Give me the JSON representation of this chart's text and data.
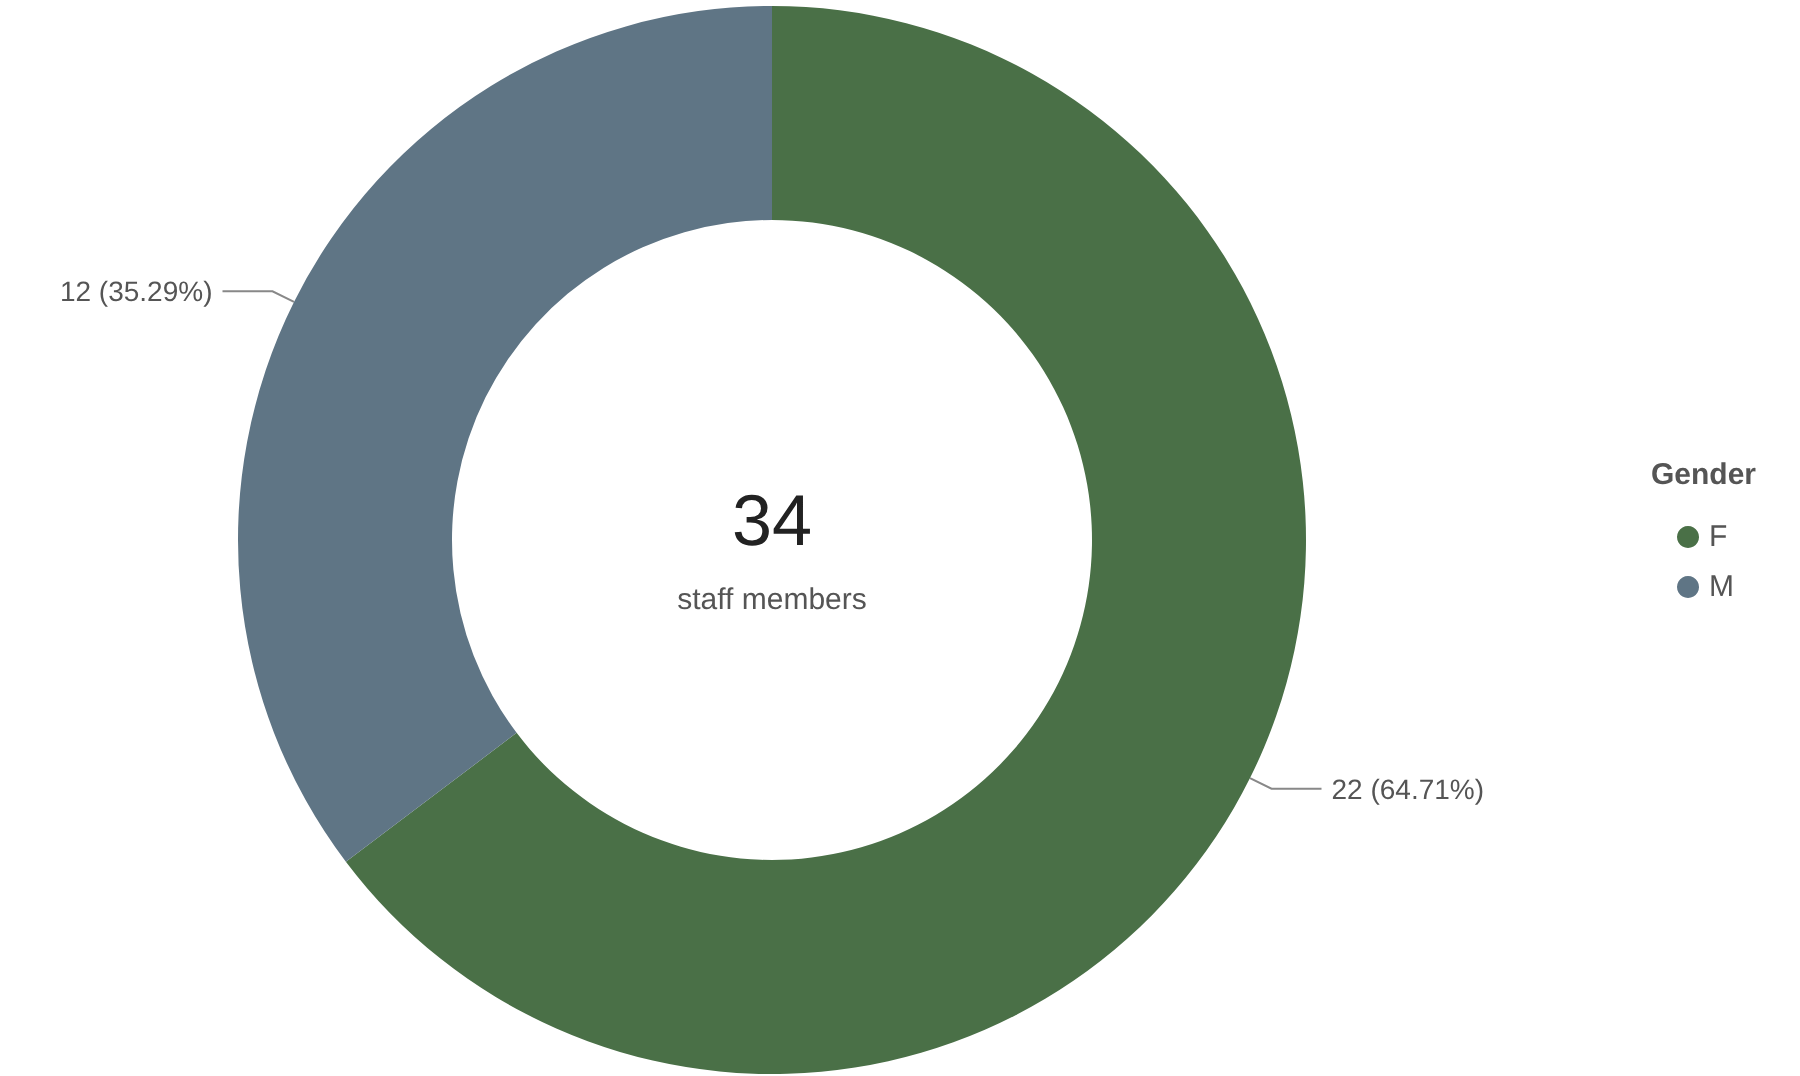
{
  "chart_data": {
    "type": "donut",
    "categories": [
      "F",
      "M"
    ],
    "values": [
      22,
      12
    ],
    "colors": [
      "#4a7047",
      "#5f7585"
    ],
    "value_labels": [
      "22 (64.71%)",
      "12 (35.29%)"
    ],
    "legend_title": "Gender",
    "legend": "right",
    "annotations": [
      "34",
      "staff members"
    ]
  }
}
